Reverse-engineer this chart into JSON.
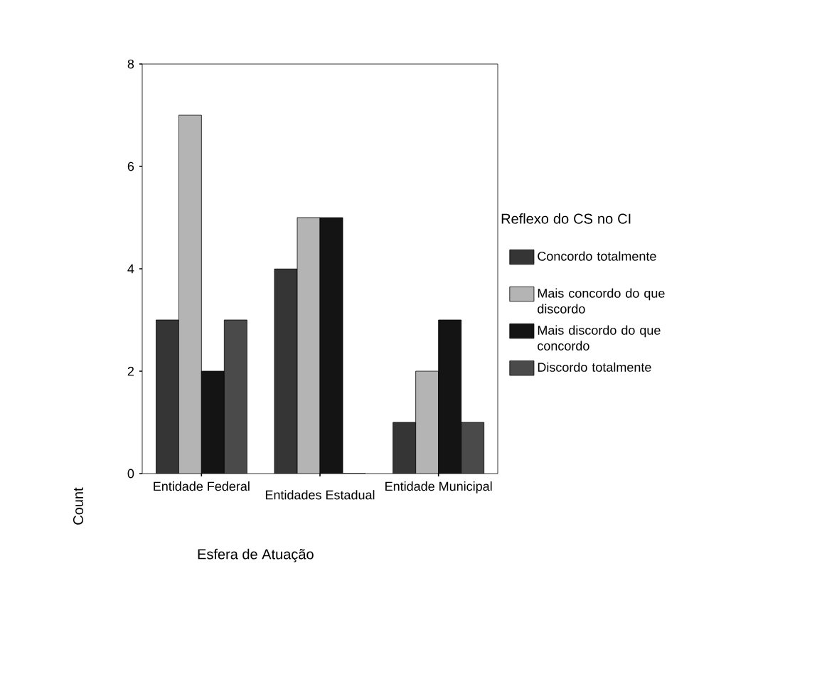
{
  "chart_data": {
    "type": "bar",
    "xlabel": "Esfera de Atuação",
    "ylabel": "Count",
    "legend_title": "Reflexo do CS no CI",
    "categories": [
      "Entidade Federal",
      "Entidades Estadual",
      "Entidade Municipal"
    ],
    "series": [
      {
        "name": "Concordo totalmente",
        "color": "#353535",
        "values": [
          3,
          4,
          1
        ]
      },
      {
        "name": "Mais concordo do que discordo",
        "color": "#b4b4b4",
        "values": [
          7,
          5,
          2
        ]
      },
      {
        "name": "Mais discordo do que concordo",
        "color": "#141414",
        "values": [
          2,
          5,
          3
        ]
      },
      {
        "name": "Discordo totalmente",
        "color": "#4a4a4a",
        "values": [
          3,
          0,
          1
        ]
      }
    ],
    "ylim": [
      0,
      8
    ],
    "yticks": [
      0,
      2,
      4,
      6,
      8
    ],
    "grid": false,
    "legend": "right"
  }
}
